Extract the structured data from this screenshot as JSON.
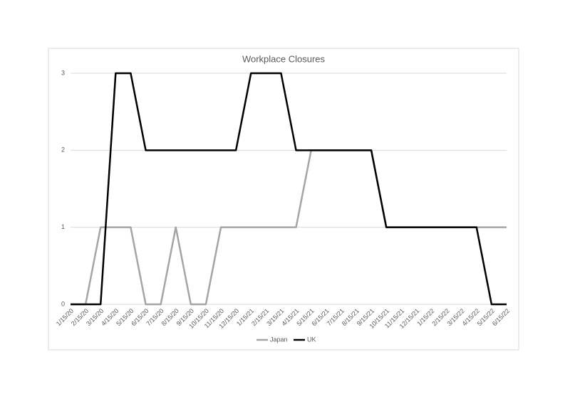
{
  "chart_data": {
    "type": "line",
    "title": "Workplace Closures",
    "categories": [
      "1/15/20",
      "2/15/20",
      "3/15/20",
      "4/15/20",
      "5/15/20",
      "6/15/20",
      "7/15/20",
      "8/15/20",
      "9/15/20",
      "10/15/20",
      "11/15/20",
      "12/15/20",
      "1/15/21",
      "2/15/21",
      "3/15/21",
      "4/15/21",
      "5/15/21",
      "6/15/21",
      "7/15/21",
      "8/15/21",
      "9/15/21",
      "10/15/21",
      "11/15/21",
      "12/15/21",
      "1/15/22",
      "2/15/22",
      "3/15/22",
      "4/15/22",
      "5/15/22",
      "6/15/22"
    ],
    "series": [
      {
        "name": "Japan",
        "color": "#a5a5a5",
        "values": [
          0,
          0,
          1,
          1,
          1,
          0,
          0,
          1,
          0,
          0,
          1,
          1,
          1,
          1,
          1,
          1,
          2,
          2,
          2,
          2,
          2,
          1,
          1,
          1,
          1,
          1,
          1,
          1,
          1,
          1
        ]
      },
      {
        "name": "UK",
        "color": "#000000",
        "values": [
          0,
          0,
          0,
          3,
          3,
          2,
          2,
          2,
          2,
          2,
          2,
          2,
          3,
          3,
          3,
          2,
          2,
          2,
          2,
          2,
          2,
          1,
          1,
          1,
          1,
          1,
          1,
          1,
          0,
          0
        ]
      }
    ],
    "ylim": [
      0,
      3
    ],
    "yticks": [
      0,
      1,
      2,
      3
    ],
    "grid": true,
    "legend": "bottom"
  }
}
